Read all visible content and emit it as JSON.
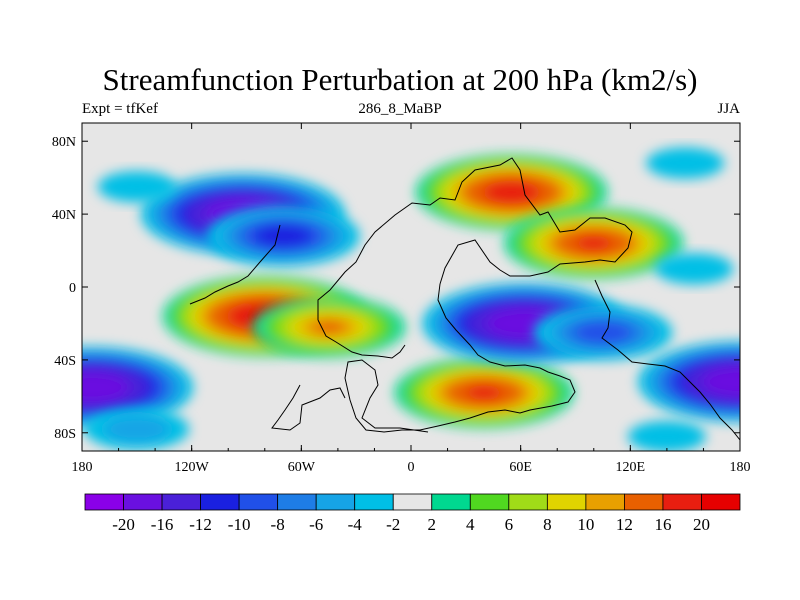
{
  "title": "Streamfunction Perturbation at 200 hPa (km2/s)",
  "subtitle_left": "Expt = tfKef",
  "subtitle_center": "286_8_MaBP",
  "subtitle_right": "JJA",
  "colors": {
    "background_field": "#e6e6e6",
    "coast": "#000000"
  },
  "chart_data": {
    "type": "heatmap",
    "title": "Streamfunction Perturbation at 200 hPa (km2/s)",
    "xlim": [
      -180,
      180
    ],
    "ylim": [
      -90,
      90
    ],
    "x_ticks": [
      {
        "value": -180,
        "label": "180"
      },
      {
        "value": -120,
        "label": "120W"
      },
      {
        "value": -60,
        "label": "60W"
      },
      {
        "value": 0,
        "label": "0"
      },
      {
        "value": 60,
        "label": "60E"
      },
      {
        "value": 120,
        "label": "120E"
      },
      {
        "value": 180,
        "label": "180"
      }
    ],
    "y_ticks": [
      {
        "value": 80,
        "label": "80N"
      },
      {
        "value": 40,
        "label": "40N"
      },
      {
        "value": 0,
        "label": "0"
      },
      {
        "value": -40,
        "label": "40S"
      },
      {
        "value": -80,
        "label": "80S"
      }
    ],
    "colorbar": {
      "levels": [
        "-20",
        "-16",
        "-12",
        "-10",
        "-8",
        "-6",
        "-4",
        "-2",
        "2",
        "4",
        "6",
        "8",
        "10",
        "12",
        "16",
        "20"
      ],
      "colors": [
        "#8a00e8",
        "#6a10e0",
        "#4a20d8",
        "#1a20e0",
        "#2050e8",
        "#1e7de6",
        "#16a4e6",
        "#00bfe6",
        "#e6e6e6",
        "#00d890",
        "#50d820",
        "#a0dc18",
        "#e0d400",
        "#e8a000",
        "#e86000",
        "#e81e10",
        "#e60000"
      ]
    },
    "anomalies": [
      {
        "lon": -92,
        "lat": 40,
        "value": -20
      },
      {
        "lon": -70,
        "lat": 28,
        "value": -12
      },
      {
        "lon": -80,
        "lat": -16,
        "value": 20
      },
      {
        "lon": -45,
        "lat": -22,
        "value": 12
      },
      {
        "lon": 55,
        "lat": 52,
        "value": 18
      },
      {
        "lon": 100,
        "lat": 24,
        "value": 16
      },
      {
        "lon": 40,
        "lat": -58,
        "value": 16
      },
      {
        "lon": 62,
        "lat": -20,
        "value": -20
      },
      {
        "lon": 105,
        "lat": -25,
        "value": -10
      },
      {
        "lon": -175,
        "lat": -55,
        "value": -20
      },
      {
        "lon": 180,
        "lat": -52,
        "value": -20
      },
      {
        "lon": -150,
        "lat": 55,
        "value": -4
      },
      {
        "lon": 150,
        "lat": 68,
        "value": -4
      },
      {
        "lon": 155,
        "lat": 10,
        "value": -4
      },
      {
        "lon": -150,
        "lat": -78,
        "value": -6
      },
      {
        "lon": 140,
        "lat": -82,
        "value": -4
      }
    ]
  }
}
